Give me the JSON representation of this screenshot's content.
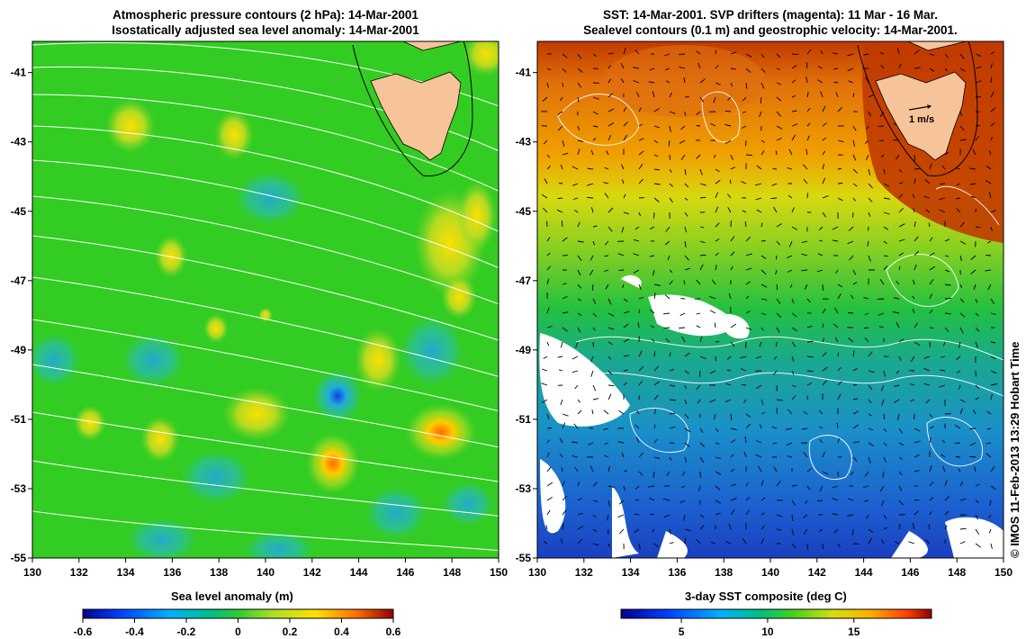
{
  "left_panel": {
    "title_line1": "Atmospheric pressure contours (2 hPa): 14-Mar-2001",
    "title_line2": "Isostatically adjusted sea level anomaly: 14-Mar-2001",
    "colorbar_label": "Sea level anomaly (m)",
    "colorbar_ticks": [
      "-0.6",
      "-0.4",
      "-0.2",
      "0",
      "0.2",
      "0.4",
      "0.6"
    ]
  },
  "right_panel": {
    "title_line1": "SST: 14-Mar-2001. SVP drifters (magenta): 11 Mar - 16 Mar.",
    "title_line2": "Sealevel contours (0.1 m) and geostrophic velocity: 14-Mar-2001.",
    "colorbar_label": "3-day SST composite (deg C)",
    "colorbar_ticks": [
      "5",
      "10",
      "15"
    ],
    "velocity_scale_label": "1 m/s"
  },
  "axes": {
    "lon_ticks": [
      "130",
      "132",
      "134",
      "136",
      "138",
      "140",
      "142",
      "144",
      "146",
      "148",
      "150"
    ],
    "lat_ticks": [
      "-41",
      "-43",
      "-45",
      "-47",
      "-49",
      "-51",
      "-53",
      "-55"
    ],
    "lon_range": [
      130,
      150
    ],
    "lat_range": [
      -55,
      -40.1
    ]
  },
  "copyright": "© IMOS 11-Feb-2013 13:29 Hobart Time",
  "colors": {
    "land": "#f7c49a",
    "anomaly_background": "#33cc22",
    "sst_warm": "#d04a00",
    "sst_cold": "#2a72d8"
  }
}
